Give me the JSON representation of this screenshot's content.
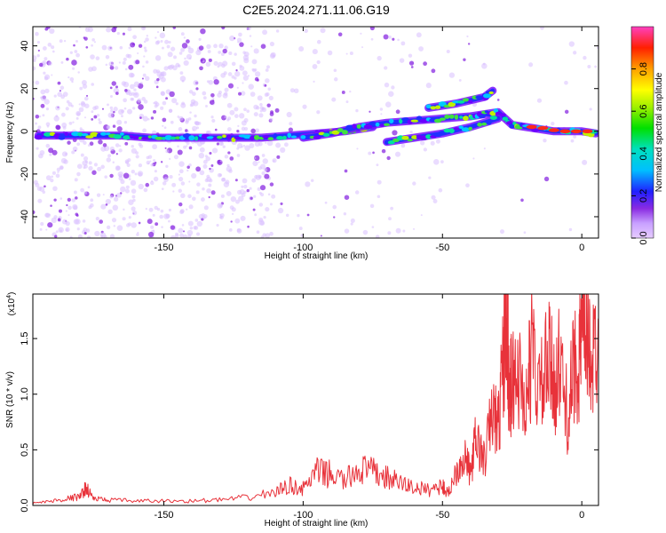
{
  "title": "C2E5.2024.271.11.06.G19",
  "chart_data": [
    {
      "type": "heatmap",
      "xlabel": "Height of straight line (km)",
      "ylabel": "Frequency (Hz)",
      "xlim": [
        -197,
        6
      ],
      "ylim": [
        -50,
        49
      ],
      "x_ticks": [
        -150,
        -100,
        -50,
        0
      ],
      "y_ticks": [
        -40,
        -20,
        0,
        20,
        40
      ],
      "x_tick_labels": [
        "-150",
        "-100",
        "-50",
        "0"
      ],
      "y_tick_labels": [
        "-40",
        "-20",
        "0",
        "20",
        "40"
      ],
      "colorbar": {
        "label": "Normalized spectral amplitude",
        "range": [
          0,
          1
        ],
        "ticks": [
          0.0,
          0.2,
          0.4,
          0.6,
          0.8
        ],
        "tick_labels": [
          "0.0",
          "0.2",
          "0.4",
          "0.6",
          "0.8"
        ]
      },
      "tracks": [
        {
          "x": [
            -195,
            -185,
            -175,
            -165,
            -155,
            -145,
            -135,
            -125,
            -115,
            -105,
            -95,
            -85,
            -75
          ],
          "y": [
            -2,
            -2,
            -2,
            -2,
            -3,
            -3,
            -3,
            -3,
            -3,
            -2,
            -1,
            0,
            2
          ]
        },
        {
          "x": [
            -100,
            -90,
            -80,
            -70,
            -60,
            -50,
            -40,
            -35,
            -30,
            -25,
            -20,
            -10,
            0,
            5
          ],
          "y": [
            -3,
            -1,
            2,
            4,
            5,
            6,
            7,
            8,
            9,
            3,
            2,
            0,
            0,
            -1
          ]
        },
        {
          "x": [
            -70,
            -60,
            -50,
            -40,
            -30
          ],
          "y": [
            -5,
            -3,
            -1,
            2,
            6
          ]
        },
        {
          "x": [
            -55,
            -45,
            -35,
            -32
          ],
          "y": [
            11,
            13,
            16,
            19
          ]
        }
      ]
    },
    {
      "type": "line",
      "xlabel": "Height of straight line (km)",
      "ylabel": "SNR (10 * v/v)",
      "scale_label": "(x10",
      "scale_exponent": "4",
      "xlim": [
        -197,
        6
      ],
      "ylim": [
        0,
        1.9
      ],
      "x_ticks": [
        -150,
        -100,
        -50,
        0
      ],
      "y_ticks": [
        0.0,
        0.5,
        1.0,
        1.5
      ],
      "x_tick_labels": [
        "-150",
        "-100",
        "-50",
        "0"
      ],
      "y_tick_labels": [
        "0.0",
        "0.5",
        "1.0",
        "1.5"
      ],
      "series": [
        {
          "color": "#e8323a",
          "x": [
            -197,
            -190,
            -185,
            -180,
            -178,
            -175,
            -170,
            -160,
            -150,
            -140,
            -130,
            -120,
            -110,
            -105,
            -100,
            -95,
            -90,
            -85,
            -80,
            -75,
            -70,
            -65,
            -60,
            -55,
            -50,
            -48,
            -45,
            -42,
            -40,
            -38,
            -35,
            -32,
            -30,
            -28,
            -27,
            -26,
            -25,
            -23,
            -20,
            -18,
            -15,
            -12,
            -10,
            -8,
            -5,
            -3,
            -1,
            0,
            2,
            4,
            6
          ],
          "y": [
            0.02,
            0.04,
            0.06,
            0.08,
            0.16,
            0.06,
            0.05,
            0.04,
            0.04,
            0.04,
            0.05,
            0.07,
            0.12,
            0.18,
            0.15,
            0.3,
            0.28,
            0.22,
            0.33,
            0.3,
            0.25,
            0.2,
            0.16,
            0.14,
            0.18,
            0.1,
            0.32,
            0.45,
            0.28,
            0.6,
            0.4,
            0.85,
            0.7,
            1.35,
            1.9,
            1.0,
            1.1,
            1.2,
            0.9,
            1.4,
            1.0,
            1.3,
            1.1,
            1.25,
            0.8,
            1.2,
            1.35,
            1.45,
            1.55,
            1.3,
            1.6
          ]
        }
      ]
    }
  ]
}
